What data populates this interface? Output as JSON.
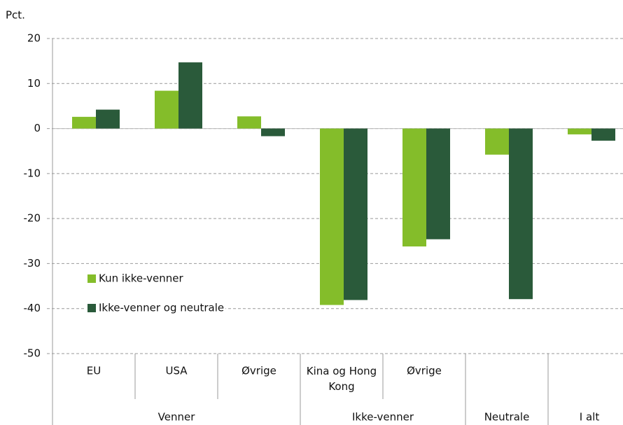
{
  "chart_data": {
    "type": "bar",
    "y_label": "Pct.",
    "categories": [
      "EU",
      "USA",
      "Øvrige",
      "Kina og Hong Kong",
      "Øvrige",
      null,
      null
    ],
    "groups": [
      {
        "name": "Venner",
        "count": 3
      },
      {
        "name": "Ikke-venner",
        "count": 2
      },
      {
        "name": "Neutrale",
        "count": 1
      },
      {
        "name": "I alt",
        "count": 1
      }
    ],
    "series": [
      {
        "name": "Kun ikke-venner",
        "color": "#84bd2a",
        "values": [
          2.6,
          8.4,
          2.7,
          -39.2,
          -26.2,
          -5.8,
          -1.3
        ]
      },
      {
        "name": "Ikke-venner og neutrale",
        "color": "#2a5a3a",
        "values": [
          4.2,
          14.7,
          -1.7,
          -38.1,
          -24.6,
          -37.9,
          -2.7
        ]
      }
    ],
    "ylim": [
      -50,
      20
    ],
    "yticks": [
      -50,
      -40,
      -30,
      -20,
      -10,
      0,
      10,
      20
    ],
    "grid": true,
    "legend": "lower-left"
  }
}
